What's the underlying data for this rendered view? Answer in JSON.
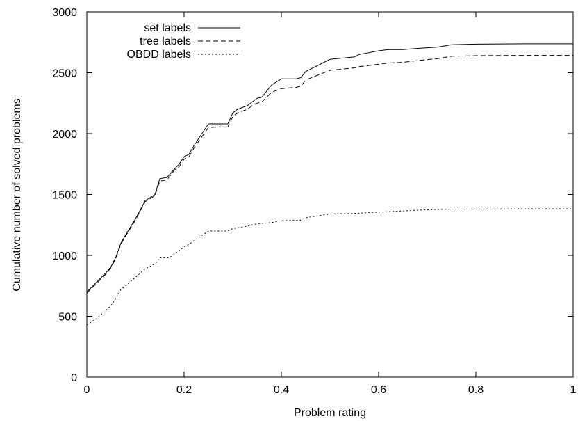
{
  "chart_data": {
    "type": "line",
    "title": "",
    "xlabel": "Problem rating",
    "ylabel": "Cumulative number of solved problems",
    "xlim": [
      0,
      1
    ],
    "ylim": [
      0,
      3000
    ],
    "xticks": [
      "0",
      "0.2",
      "0.4",
      "0.6",
      "0.8",
      "1"
    ],
    "yticks": [
      "0",
      "500",
      "1000",
      "1500",
      "2000",
      "2500",
      "3000"
    ],
    "grid": false,
    "legend_position": "top-left",
    "series": [
      {
        "name": "set labels",
        "style": "solid",
        "points": [
          [
            0,
            700
          ],
          [
            0.02,
            780
          ],
          [
            0.04,
            860
          ],
          [
            0.05,
            910
          ],
          [
            0.06,
            990
          ],
          [
            0.07,
            1100
          ],
          [
            0.08,
            1170
          ],
          [
            0.1,
            1300
          ],
          [
            0.12,
            1450
          ],
          [
            0.14,
            1500
          ],
          [
            0.15,
            1630
          ],
          [
            0.165,
            1640
          ],
          [
            0.18,
            1710
          ],
          [
            0.19,
            1750
          ],
          [
            0.2,
            1810
          ],
          [
            0.21,
            1830
          ],
          [
            0.22,
            1900
          ],
          [
            0.25,
            2080
          ],
          [
            0.27,
            2080
          ],
          [
            0.29,
            2080
          ],
          [
            0.3,
            2170
          ],
          [
            0.31,
            2200
          ],
          [
            0.33,
            2230
          ],
          [
            0.34,
            2260
          ],
          [
            0.35,
            2290
          ],
          [
            0.36,
            2300
          ],
          [
            0.38,
            2400
          ],
          [
            0.4,
            2450
          ],
          [
            0.43,
            2450
          ],
          [
            0.44,
            2460
          ],
          [
            0.45,
            2510
          ],
          [
            0.5,
            2610
          ],
          [
            0.55,
            2630
          ],
          [
            0.56,
            2650
          ],
          [
            0.6,
            2680
          ],
          [
            0.62,
            2690
          ],
          [
            0.65,
            2690
          ],
          [
            0.68,
            2700
          ],
          [
            0.72,
            2710
          ],
          [
            0.75,
            2730
          ],
          [
            0.8,
            2735
          ],
          [
            0.9,
            2738
          ],
          [
            1.0,
            2738
          ]
        ]
      },
      {
        "name": "tree labels",
        "style": "dashed",
        "points": [
          [
            0,
            690
          ],
          [
            0.02,
            770
          ],
          [
            0.04,
            850
          ],
          [
            0.05,
            900
          ],
          [
            0.06,
            980
          ],
          [
            0.07,
            1090
          ],
          [
            0.08,
            1160
          ],
          [
            0.1,
            1290
          ],
          [
            0.12,
            1440
          ],
          [
            0.14,
            1490
          ],
          [
            0.15,
            1610
          ],
          [
            0.165,
            1620
          ],
          [
            0.18,
            1700
          ],
          [
            0.19,
            1730
          ],
          [
            0.2,
            1790
          ],
          [
            0.21,
            1810
          ],
          [
            0.22,
            1880
          ],
          [
            0.25,
            2050
          ],
          [
            0.27,
            2055
          ],
          [
            0.29,
            2055
          ],
          [
            0.3,
            2140
          ],
          [
            0.31,
            2170
          ],
          [
            0.33,
            2200
          ],
          [
            0.34,
            2230
          ],
          [
            0.35,
            2250
          ],
          [
            0.36,
            2260
          ],
          [
            0.38,
            2340
          ],
          [
            0.4,
            2370
          ],
          [
            0.43,
            2380
          ],
          [
            0.44,
            2390
          ],
          [
            0.45,
            2440
          ],
          [
            0.5,
            2520
          ],
          [
            0.55,
            2540
          ],
          [
            0.56,
            2550
          ],
          [
            0.6,
            2570
          ],
          [
            0.62,
            2580
          ],
          [
            0.65,
            2585
          ],
          [
            0.68,
            2600
          ],
          [
            0.72,
            2615
          ],
          [
            0.75,
            2635
          ],
          [
            0.8,
            2640
          ],
          [
            0.9,
            2642
          ],
          [
            1.0,
            2642
          ]
        ]
      },
      {
        "name": "OBDD labels",
        "style": "dotted",
        "points": [
          [
            0,
            430
          ],
          [
            0.02,
            480
          ],
          [
            0.04,
            550
          ],
          [
            0.05,
            590
          ],
          [
            0.06,
            650
          ],
          [
            0.07,
            720
          ],
          [
            0.08,
            750
          ],
          [
            0.1,
            820
          ],
          [
            0.12,
            890
          ],
          [
            0.14,
            930
          ],
          [
            0.15,
            980
          ],
          [
            0.17,
            980
          ],
          [
            0.19,
            1040
          ],
          [
            0.2,
            1070
          ],
          [
            0.21,
            1090
          ],
          [
            0.22,
            1120
          ],
          [
            0.25,
            1200
          ],
          [
            0.27,
            1200
          ],
          [
            0.29,
            1200
          ],
          [
            0.3,
            1220
          ],
          [
            0.33,
            1240
          ],
          [
            0.35,
            1260
          ],
          [
            0.38,
            1270
          ],
          [
            0.4,
            1285
          ],
          [
            0.44,
            1290
          ],
          [
            0.45,
            1310
          ],
          [
            0.5,
            1340
          ],
          [
            0.55,
            1345
          ],
          [
            0.6,
            1355
          ],
          [
            0.65,
            1365
          ],
          [
            0.7,
            1375
          ],
          [
            0.75,
            1380
          ],
          [
            0.8,
            1380
          ],
          [
            0.9,
            1382
          ],
          [
            1.0,
            1382
          ]
        ]
      }
    ]
  }
}
